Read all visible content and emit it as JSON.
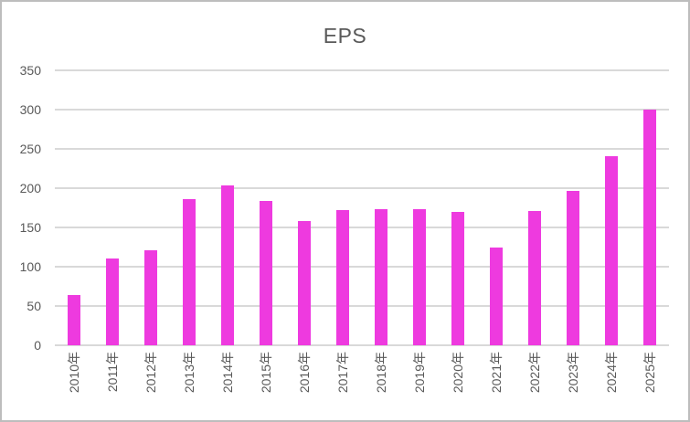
{
  "window": {
    "background": "#ffffff",
    "border_color": "#bdbdbd"
  },
  "colors": {
    "bar_fill": "#ee3adf",
    "gridline": "#d9d9d9",
    "text": "#595959"
  },
  "chart_data": {
    "type": "bar",
    "title": "EPS",
    "categories": [
      "2010年",
      "2011年",
      "2012年",
      "2013年",
      "2014年",
      "2015年",
      "2016年",
      "2017年",
      "2018年",
      "2019年",
      "2020年",
      "2021年",
      "2022年",
      "2023年",
      "2024年",
      "2025年"
    ],
    "values": [
      64,
      111,
      121,
      186,
      203,
      184,
      158,
      172,
      173,
      173,
      170,
      124,
      171,
      196,
      241,
      300
    ],
    "xlabel": "",
    "ylabel": "",
    "ylim": [
      0,
      350
    ],
    "yticks": [
      0,
      50,
      100,
      150,
      200,
      250,
      300,
      350
    ],
    "grid": "horizontal",
    "legend": "none",
    "bar_color": "#ee3adf",
    "x_tick_rotation": -90
  }
}
